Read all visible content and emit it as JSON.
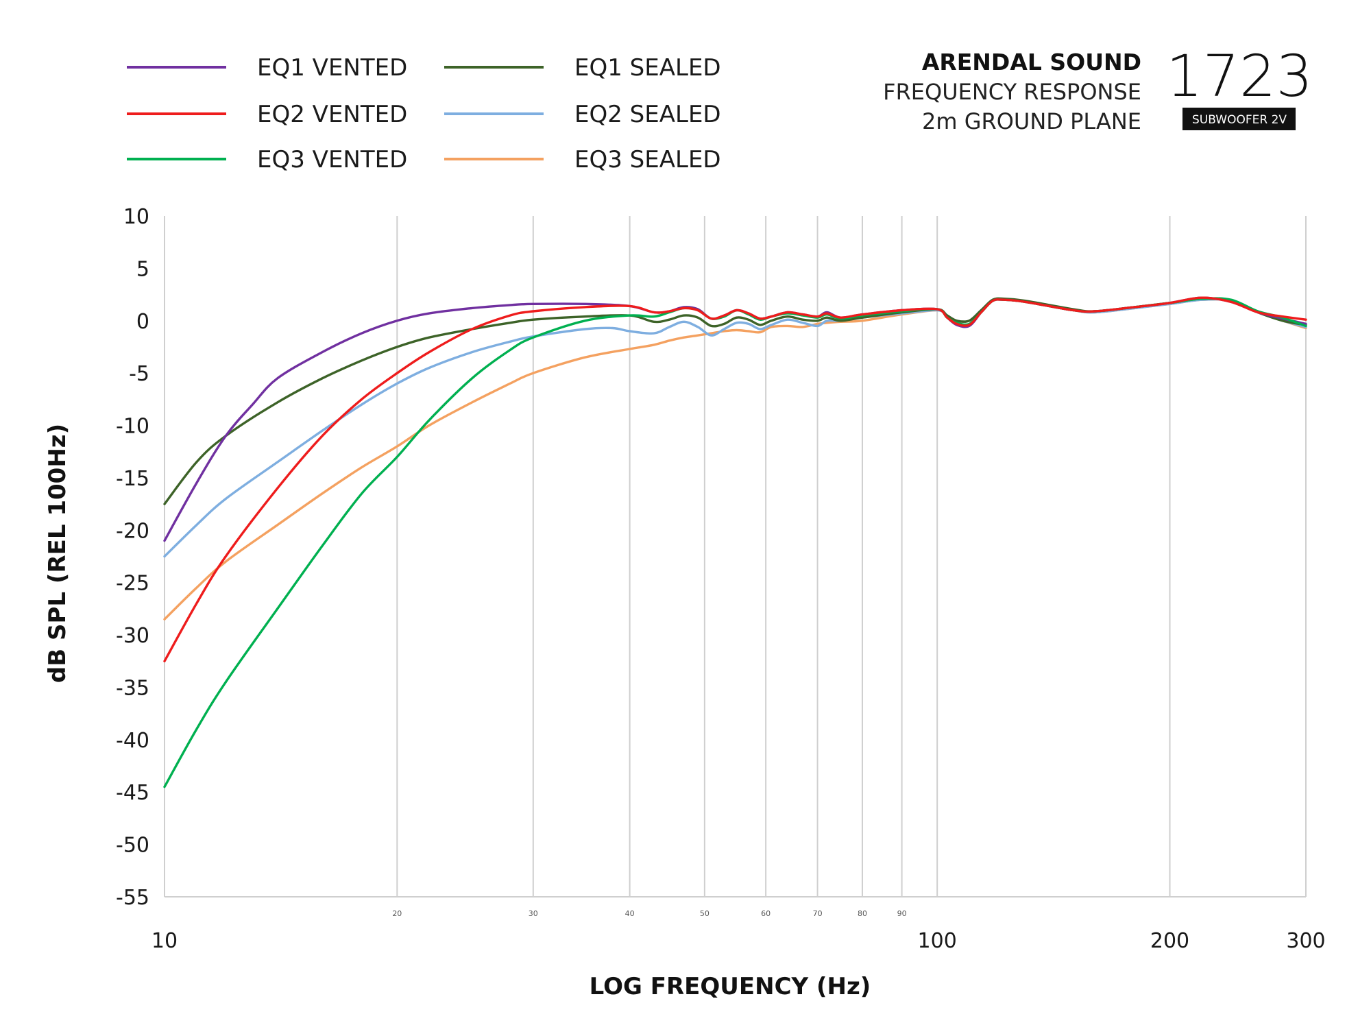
{
  "brand": {
    "name": "ARENDAL SOUND",
    "line1": "FREQUENCY RESPONSE",
    "line2": "2m GROUND PLANE",
    "model": "1723",
    "badge": "SUBWOOFER 2V"
  },
  "chart_data": {
    "type": "line",
    "title": "ARENDAL SOUND FREQUENCY RESPONSE 2m GROUND PLANE",
    "xlabel": "LOG FREQUENCY (Hz)",
    "ylabel": "dB SPL (REL 100Hz)",
    "x_scale": "log",
    "xlim": [
      10,
      300
    ],
    "ylim": [
      -55,
      10
    ],
    "y_ticks": [
      10,
      5,
      0,
      -5,
      -10,
      -15,
      -20,
      -25,
      -30,
      -35,
      -40,
      -45,
      -50,
      -55
    ],
    "x_major_ticks": [
      10,
      100,
      200,
      300
    ],
    "x_minor_ticks": [
      20,
      30,
      40,
      50,
      60,
      70,
      80,
      90
    ],
    "x_gridlines": [
      20,
      30,
      40,
      50,
      60,
      70,
      80,
      90,
      100,
      200
    ],
    "grid": "vertical",
    "legend": "top-left",
    "series": [
      {
        "name": "EQ1 VENTED",
        "color": "#7030a0",
        "points": [
          [
            10,
            -21
          ],
          [
            11,
            -15.5
          ],
          [
            12,
            -11
          ],
          [
            13,
            -8
          ],
          [
            14,
            -5.5
          ],
          [
            16,
            -3
          ],
          [
            18,
            -1.2
          ],
          [
            20,
            0
          ],
          [
            22,
            0.7
          ],
          [
            25,
            1.2
          ],
          [
            28,
            1.5
          ],
          [
            30,
            1.6
          ],
          [
            35,
            1.6
          ],
          [
            40,
            1.4
          ],
          [
            43,
            0.8
          ],
          [
            45,
            0.9
          ],
          [
            47,
            1.3
          ],
          [
            49,
            1.1
          ],
          [
            51,
            0.2
          ],
          [
            53,
            0.5
          ],
          [
            55,
            1.0
          ],
          [
            57,
            0.7
          ],
          [
            59,
            0.2
          ],
          [
            61,
            0.4
          ],
          [
            64,
            0.8
          ],
          [
            67,
            0.6
          ],
          [
            70,
            0.4
          ],
          [
            72,
            0.8
          ],
          [
            75,
            0.3
          ],
          [
            80,
            0.6
          ],
          [
            90,
            1.0
          ],
          [
            100,
            1.1
          ],
          [
            103,
            0.3
          ],
          [
            106,
            -0.4
          ],
          [
            110,
            -0.5
          ],
          [
            114,
            0.8
          ],
          [
            118,
            1.9
          ],
          [
            122,
            2.0
          ],
          [
            130,
            1.8
          ],
          [
            150,
            1.0
          ],
          [
            160,
            0.9
          ],
          [
            180,
            1.3
          ],
          [
            200,
            1.7
          ],
          [
            220,
            2.2
          ],
          [
            240,
            1.8
          ],
          [
            260,
            0.8
          ],
          [
            280,
            0.2
          ],
          [
            300,
            -0.3
          ]
        ]
      },
      {
        "name": "EQ2 VENTED",
        "color": "#ee1c1c",
        "points": [
          [
            10,
            -32.5
          ],
          [
            11,
            -27
          ],
          [
            12,
            -22.5
          ],
          [
            14,
            -16
          ],
          [
            16,
            -11
          ],
          [
            18,
            -7.5
          ],
          [
            20,
            -5
          ],
          [
            22,
            -3
          ],
          [
            25,
            -0.8
          ],
          [
            28,
            0.5
          ],
          [
            30,
            0.9
          ],
          [
            35,
            1.3
          ],
          [
            40,
            1.4
          ],
          [
            43,
            0.8
          ],
          [
            45,
            0.9
          ],
          [
            47,
            1.2
          ],
          [
            49,
            1.0
          ],
          [
            51,
            0.2
          ],
          [
            53,
            0.5
          ],
          [
            55,
            1.0
          ],
          [
            57,
            0.7
          ],
          [
            59,
            0.2
          ],
          [
            61,
            0.4
          ],
          [
            64,
            0.8
          ],
          [
            67,
            0.6
          ],
          [
            70,
            0.4
          ],
          [
            72,
            0.7
          ],
          [
            75,
            0.3
          ],
          [
            80,
            0.6
          ],
          [
            90,
            1.0
          ],
          [
            100,
            1.1
          ],
          [
            103,
            0.3
          ],
          [
            106,
            -0.3
          ],
          [
            110,
            -0.4
          ],
          [
            114,
            0.8
          ],
          [
            118,
            1.9
          ],
          [
            122,
            2.0
          ],
          [
            130,
            1.8
          ],
          [
            150,
            1.0
          ],
          [
            160,
            0.9
          ],
          [
            180,
            1.3
          ],
          [
            200,
            1.7
          ],
          [
            220,
            2.2
          ],
          [
            240,
            1.8
          ],
          [
            260,
            0.8
          ],
          [
            280,
            0.4
          ],
          [
            300,
            0.1
          ]
        ]
      },
      {
        "name": "EQ3 VENTED",
        "color": "#00b050",
        "points": [
          [
            10,
            -44.5
          ],
          [
            11,
            -39
          ],
          [
            12,
            -34.5
          ],
          [
            14,
            -27.5
          ],
          [
            16,
            -21.5
          ],
          [
            18,
            -16.5
          ],
          [
            20,
            -13
          ],
          [
            22,
            -9.5
          ],
          [
            25,
            -5.5
          ],
          [
            28,
            -2.8
          ],
          [
            30,
            -1.6
          ],
          [
            35,
            0
          ],
          [
            40,
            0.5
          ],
          [
            43,
            0.4
          ],
          [
            45,
            0.8
          ],
          [
            47,
            1.2
          ],
          [
            49,
            1.0
          ],
          [
            51,
            0.2
          ],
          [
            53,
            0.4
          ],
          [
            55,
            1.0
          ],
          [
            57,
            0.6
          ],
          [
            59,
            0.1
          ],
          [
            61,
            0.4
          ],
          [
            64,
            0.7
          ],
          [
            67,
            0.5
          ],
          [
            70,
            0.3
          ],
          [
            72,
            0.6
          ],
          [
            75,
            0.2
          ],
          [
            80,
            0.5
          ],
          [
            90,
            0.9
          ],
          [
            100,
            1.1
          ],
          [
            103,
            0.3
          ],
          [
            106,
            -0.2
          ],
          [
            110,
            -0.3
          ],
          [
            114,
            0.8
          ],
          [
            118,
            1.9
          ],
          [
            122,
            2.0
          ],
          [
            130,
            1.8
          ],
          [
            150,
            1.0
          ],
          [
            160,
            0.9
          ],
          [
            180,
            1.3
          ],
          [
            200,
            1.7
          ],
          [
            220,
            2.1
          ],
          [
            240,
            2.0
          ],
          [
            260,
            0.9
          ],
          [
            280,
            0.3
          ],
          [
            300,
            -0.5
          ]
        ]
      },
      {
        "name": "EQ1 SEALED",
        "color": "#3d6328",
        "points": [
          [
            10,
            -17.5
          ],
          [
            11,
            -13.5
          ],
          [
            12,
            -11
          ],
          [
            14,
            -7.8
          ],
          [
            16,
            -5.5
          ],
          [
            18,
            -3.8
          ],
          [
            20,
            -2.5
          ],
          [
            22,
            -1.6
          ],
          [
            25,
            -0.8
          ],
          [
            28,
            -0.2
          ],
          [
            30,
            0.1
          ],
          [
            35,
            0.4
          ],
          [
            40,
            0.5
          ],
          [
            43,
            -0.1
          ],
          [
            45,
            0.1
          ],
          [
            47,
            0.5
          ],
          [
            49,
            0.3
          ],
          [
            51,
            -0.5
          ],
          [
            53,
            -0.3
          ],
          [
            55,
            0.3
          ],
          [
            57,
            0.1
          ],
          [
            59,
            -0.4
          ],
          [
            61,
            0
          ],
          [
            64,
            0.4
          ],
          [
            67,
            0.1
          ],
          [
            70,
            0
          ],
          [
            72,
            0.3
          ],
          [
            75,
            0
          ],
          [
            80,
            0.3
          ],
          [
            90,
            0.8
          ],
          [
            100,
            1.1
          ],
          [
            103,
            0.5
          ],
          [
            106,
            0
          ],
          [
            110,
            0
          ],
          [
            114,
            1.0
          ],
          [
            118,
            2.0
          ],
          [
            122,
            2.1
          ],
          [
            130,
            1.9
          ],
          [
            150,
            1.1
          ],
          [
            160,
            0.9
          ],
          [
            180,
            1.3
          ],
          [
            200,
            1.7
          ],
          [
            220,
            2.1
          ],
          [
            240,
            1.9
          ],
          [
            260,
            0.8
          ],
          [
            280,
            0
          ],
          [
            300,
            -0.4
          ]
        ]
      },
      {
        "name": "EQ2 SEALED",
        "color": "#7eaee0",
        "points": [
          [
            10,
            -22.5
          ],
          [
            11,
            -19.5
          ],
          [
            12,
            -17
          ],
          [
            14,
            -13.5
          ],
          [
            16,
            -10.5
          ],
          [
            18,
            -8
          ],
          [
            20,
            -6
          ],
          [
            22,
            -4.5
          ],
          [
            25,
            -3
          ],
          [
            28,
            -2
          ],
          [
            30,
            -1.5
          ],
          [
            35,
            -0.8
          ],
          [
            38,
            -0.7
          ],
          [
            40,
            -1
          ],
          [
            43,
            -1.2
          ],
          [
            45,
            -0.6
          ],
          [
            47,
            -0.1
          ],
          [
            49,
            -0.6
          ],
          [
            51,
            -1.4
          ],
          [
            53,
            -0.8
          ],
          [
            55,
            -0.2
          ],
          [
            57,
            -0.3
          ],
          [
            59,
            -0.8
          ],
          [
            61,
            -0.4
          ],
          [
            64,
            0.1
          ],
          [
            67,
            -0.2
          ],
          [
            70,
            -0.5
          ],
          [
            72,
            0
          ],
          [
            75,
            0
          ],
          [
            80,
            0.3
          ],
          [
            90,
            0.7
          ],
          [
            100,
            1.0
          ],
          [
            103,
            0.5
          ],
          [
            106,
            0
          ],
          [
            110,
            0
          ],
          [
            114,
            1.0
          ],
          [
            118,
            1.9
          ],
          [
            122,
            2.0
          ],
          [
            130,
            1.8
          ],
          [
            150,
            1.0
          ],
          [
            160,
            0.8
          ],
          [
            180,
            1.2
          ],
          [
            200,
            1.6
          ],
          [
            220,
            2.0
          ],
          [
            240,
            1.9
          ],
          [
            260,
            0.8
          ],
          [
            280,
            0
          ],
          [
            300,
            -0.6
          ]
        ]
      },
      {
        "name": "EQ3 SEALED",
        "color": "#f4a160",
        "points": [
          [
            10,
            -28.5
          ],
          [
            11,
            -25.5
          ],
          [
            12,
            -23
          ],
          [
            14,
            -19.5
          ],
          [
            16,
            -16.5
          ],
          [
            18,
            -14
          ],
          [
            20,
            -12
          ],
          [
            22,
            -10
          ],
          [
            25,
            -7.8
          ],
          [
            28,
            -6
          ],
          [
            30,
            -5
          ],
          [
            35,
            -3.5
          ],
          [
            40,
            -2.7
          ],
          [
            43,
            -2.3
          ],
          [
            45,
            -1.9
          ],
          [
            47,
            -1.6
          ],
          [
            49,
            -1.4
          ],
          [
            51,
            -1.2
          ],
          [
            53,
            -1.0
          ],
          [
            55,
            -0.9
          ],
          [
            57,
            -1.0
          ],
          [
            59,
            -1.1
          ],
          [
            61,
            -0.6
          ],
          [
            64,
            -0.5
          ],
          [
            67,
            -0.6
          ],
          [
            70,
            -0.3
          ],
          [
            72,
            -0.2
          ],
          [
            75,
            -0.1
          ],
          [
            80,
            0
          ],
          [
            90,
            0.6
          ],
          [
            100,
            1.0
          ],
          [
            103,
            0.5
          ],
          [
            106,
            0
          ],
          [
            110,
            0
          ],
          [
            114,
            1.0
          ],
          [
            118,
            1.9
          ],
          [
            122,
            2.0
          ],
          [
            130,
            1.8
          ],
          [
            150,
            1.0
          ],
          [
            160,
            0.8
          ],
          [
            180,
            1.2
          ],
          [
            200,
            1.6
          ],
          [
            220,
            2.0
          ],
          [
            240,
            1.9
          ],
          [
            260,
            0.8
          ],
          [
            280,
            0
          ],
          [
            300,
            -0.7
          ]
        ]
      }
    ]
  }
}
